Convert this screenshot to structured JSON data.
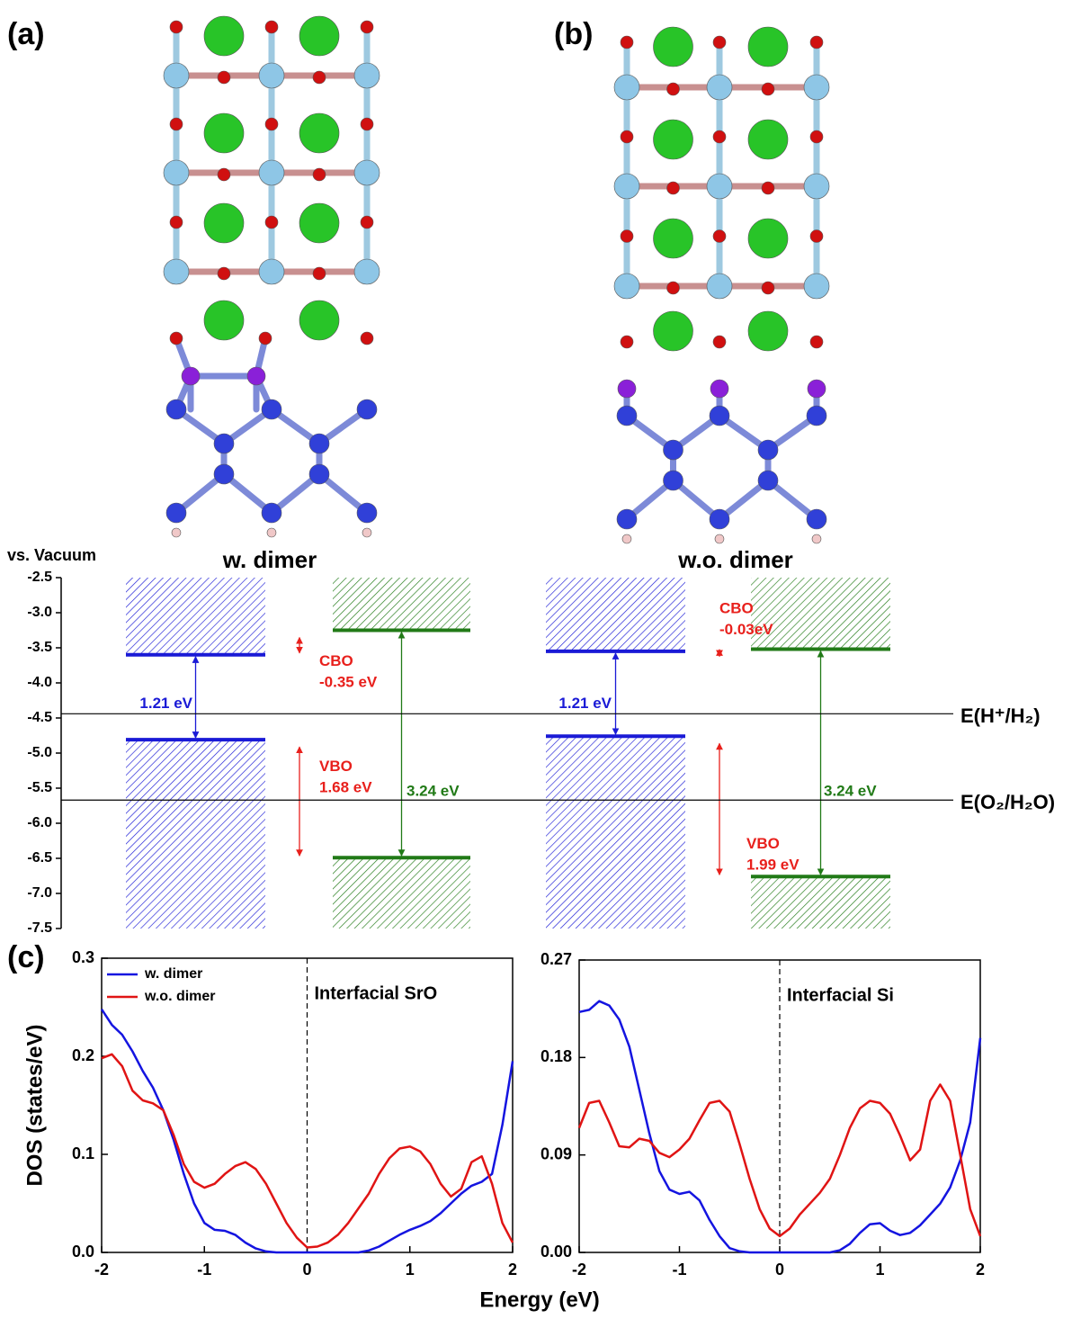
{
  "panel_labels": [
    "(a)",
    "(b)",
    "(c)"
  ],
  "chart_data": [
    {
      "type": "band-alignment",
      "ylabel": "vs. Vacuum",
      "ylim": [
        -2.5,
        -7.5
      ],
      "yticks": [
        -2.5,
        {
          "value": -3,
          "label": "-3.0"
        },
        -3.5,
        {
          "value": -4,
          "label": "-4.0"
        },
        -4.5,
        {
          "value": -5,
          "label": "-5.0"
        },
        -5.5,
        {
          "value": -6,
          "label": "-6.0"
        },
        -6.5,
        {
          "value": -7,
          "label": "-7.0"
        },
        -7.5
      ],
      "groups": [
        {
          "title": "w. dimer",
          "left": {
            "color": "#1a1ad6",
            "cbm": -3.6,
            "vbm": -4.81,
            "gap_label": "1.21 eV"
          },
          "right": {
            "color": "#217a17",
            "cbm": -3.25,
            "vbm": -6.49,
            "gap_label": "3.24 eV"
          },
          "cbo_label": [
            "CBO",
            "-0.35 eV"
          ],
          "vbo_label": [
            "VBO",
            "1.68 eV"
          ],
          "offset_color": "#e8201c"
        },
        {
          "title": "w.o. dimer",
          "left": {
            "color": "#1a1ad6",
            "cbm": -3.55,
            "vbm": -4.76,
            "gap_label": "1.21 eV"
          },
          "right": {
            "color": "#217a17",
            "cbm": -3.52,
            "vbm": -6.76,
            "gap_label": "3.24 eV"
          },
          "cbo_label": [
            "CBO",
            "-0.03eV"
          ],
          "vbo_label": [
            "VBO",
            "1.99 eV"
          ],
          "offset_color": "#e8201c"
        }
      ],
      "references": [
        {
          "value": -4.44,
          "label": "E(H⁺/H₂)"
        },
        {
          "value": -5.67,
          "label": "E(O₂/H₂O)"
        }
      ]
    },
    {
      "type": "line",
      "xlabel": "Energy (eV)",
      "ylabel": "DOS (states/eV)",
      "annotation": "Interfacial SrO",
      "xlim": [
        -2,
        2
      ],
      "xticks": [
        -2,
        -1,
        0,
        1,
        2
      ],
      "ylim": [
        0,
        0.3
      ],
      "yticks": [
        {
          "value": 0,
          "label": "0.0"
        },
        0.1,
        0.2,
        0.3
      ],
      "x": [
        -2,
        -1.9,
        -1.8,
        -1.7,
        -1.6,
        -1.5,
        -1.4,
        -1.3,
        -1.2,
        -1.1,
        -1,
        -0.9,
        -0.8,
        -0.7,
        -0.6,
        -0.5,
        -0.4,
        -0.3,
        -0.2,
        -0.1,
        0,
        0.1,
        0.2,
        0.3,
        0.4,
        0.5,
        0.6,
        0.7,
        0.8,
        0.9,
        1,
        1.1,
        1.2,
        1.3,
        1.4,
        1.5,
        1.6,
        1.7,
        1.8,
        1.9,
        2
      ],
      "series": [
        {
          "name": "w. dimer",
          "color": "#1414e0",
          "values": [
            0.248,
            0.232,
            0.222,
            0.205,
            0.185,
            0.168,
            0.145,
            0.115,
            0.08,
            0.05,
            0.03,
            0.023,
            0.022,
            0.018,
            0.01,
            0.004,
            0.001,
            0,
            0,
            0,
            0,
            0,
            0,
            0,
            0,
            0,
            0.002,
            0.006,
            0.012,
            0.018,
            0.023,
            0.027,
            0.032,
            0.04,
            0.05,
            0.06,
            0.068,
            0.072,
            0.08,
            0.13,
            0.195
          ]
        },
        {
          "name": "w.o. dimer",
          "color": "#e01414",
          "values": [
            0.198,
            0.202,
            0.19,
            0.165,
            0.155,
            0.152,
            0.145,
            0.12,
            0.09,
            0.072,
            0.066,
            0.07,
            0.08,
            0.088,
            0.092,
            0.085,
            0.07,
            0.05,
            0.03,
            0.015,
            0.005,
            0.006,
            0.01,
            0.018,
            0.03,
            0.045,
            0.06,
            0.08,
            0.096,
            0.106,
            0.108,
            0.103,
            0.09,
            0.07,
            0.057,
            0.065,
            0.092,
            0.098,
            0.07,
            0.03,
            0.01
          ]
        }
      ]
    },
    {
      "type": "line",
      "annotation": "Interfacial Si",
      "xlim": [
        -2,
        2
      ],
      "xticks": [
        -2,
        -1,
        0,
        1,
        2
      ],
      "ylim": [
        0,
        0.27
      ],
      "yticks": [
        {
          "value": 0,
          "label": "0.00"
        },
        0.09,
        0.18,
        0.27
      ],
      "x": [
        -2,
        -1.9,
        -1.8,
        -1.7,
        -1.6,
        -1.5,
        -1.4,
        -1.3,
        -1.2,
        -1.1,
        -1,
        -0.9,
        -0.8,
        -0.7,
        -0.6,
        -0.5,
        -0.4,
        -0.3,
        -0.2,
        -0.1,
        0,
        0.1,
        0.2,
        0.3,
        0.4,
        0.5,
        0.6,
        0.7,
        0.8,
        0.9,
        1,
        1.1,
        1.2,
        1.3,
        1.4,
        1.5,
        1.6,
        1.7,
        1.8,
        1.9,
        2
      ],
      "series": [
        {
          "color": "#1414e0",
          "values": [
            0.222,
            0.224,
            0.232,
            0.228,
            0.215,
            0.19,
            0.15,
            0.11,
            0.075,
            0.058,
            0.054,
            0.056,
            0.048,
            0.03,
            0.015,
            0.004,
            0.001,
            0,
            0,
            0,
            0,
            0,
            0,
            0,
            0,
            0,
            0.002,
            0.008,
            0.018,
            0.026,
            0.027,
            0.02,
            0.016,
            0.018,
            0.025,
            0.035,
            0.045,
            0.06,
            0.085,
            0.12,
            0.198
          ]
        },
        {
          "color": "#e01414",
          "values": [
            0.115,
            0.138,
            0.14,
            0.12,
            0.098,
            0.097,
            0.105,
            0.103,
            0.092,
            0.088,
            0.095,
            0.105,
            0.122,
            0.138,
            0.14,
            0.13,
            0.1,
            0.068,
            0.04,
            0.022,
            0.015,
            0.022,
            0.035,
            0.045,
            0.055,
            0.068,
            0.09,
            0.115,
            0.133,
            0.14,
            0.138,
            0.128,
            0.108,
            0.085,
            0.095,
            0.14,
            0.155,
            0.14,
            0.09,
            0.04,
            0.015
          ]
        }
      ]
    }
  ]
}
